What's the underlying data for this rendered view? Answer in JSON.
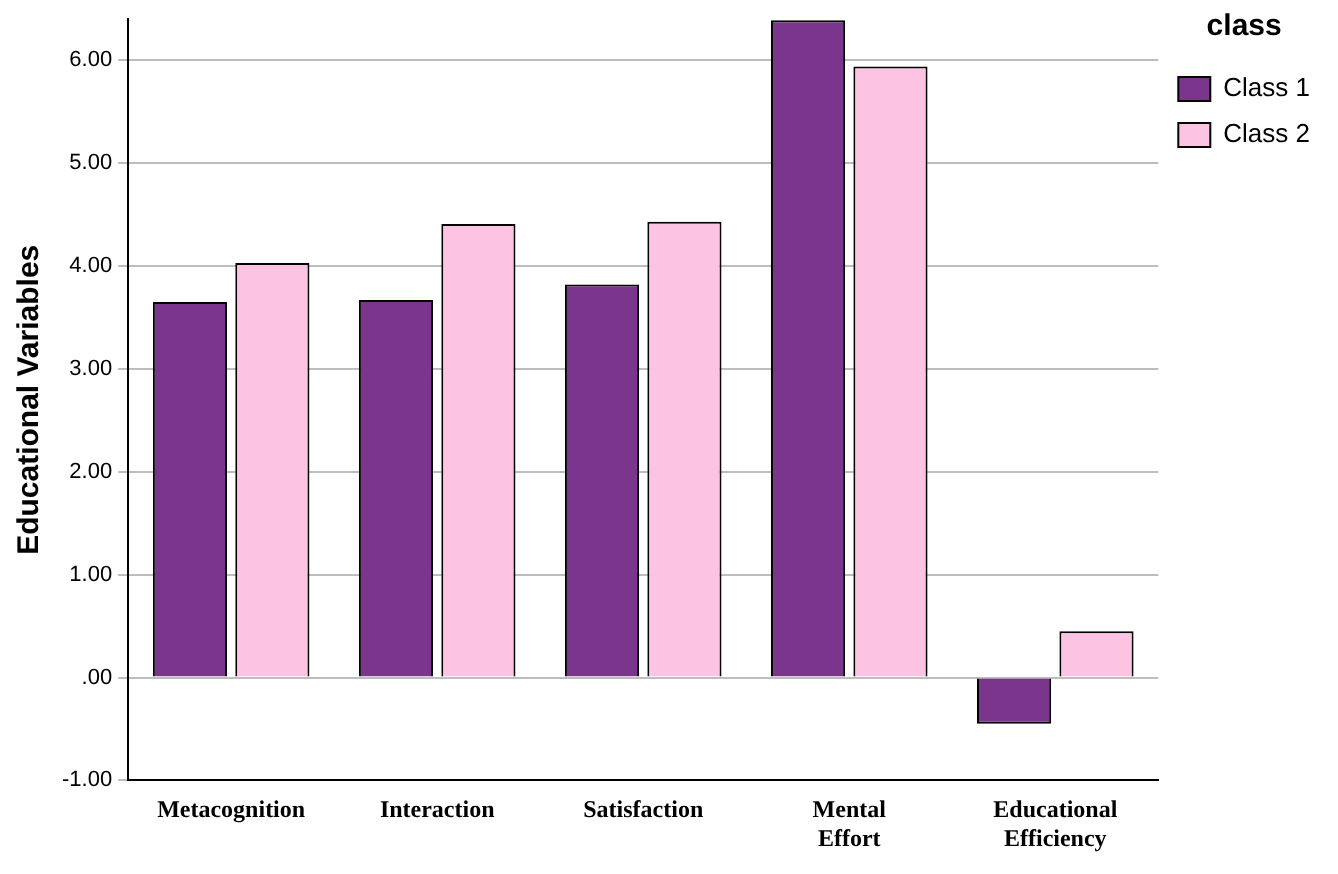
{
  "chart_data": {
    "type": "bar",
    "ylabel": "Educational Variables",
    "legend_title": "class",
    "categories": [
      "Metacognition",
      "Interaction",
      "Satisfaction",
      "Mental Effort",
      "Educational Efficiency"
    ],
    "series": [
      {
        "name": "Class 1",
        "color": "#7a368c",
        "values": [
          3.65,
          3.67,
          3.82,
          6.39,
          -0.45
        ]
      },
      {
        "name": "Class 2",
        "color": "#fcc4e2",
        "values": [
          4.03,
          4.41,
          4.43,
          5.94,
          0.45
        ]
      }
    ],
    "ylim": [
      -1,
      6.4
    ],
    "yticks": [
      {
        "value": -1,
        "label": "-1.00"
      },
      {
        "value": 0,
        "label": ".00"
      },
      {
        "value": 1,
        "label": "1.00"
      },
      {
        "value": 2,
        "label": "2.00"
      },
      {
        "value": 3,
        "label": "3.00"
      },
      {
        "value": 4,
        "label": "4.00"
      },
      {
        "value": 5,
        "label": "5.00"
      },
      {
        "value": 6,
        "label": "6.00"
      }
    ],
    "grid": "y",
    "legend": "top right"
  }
}
